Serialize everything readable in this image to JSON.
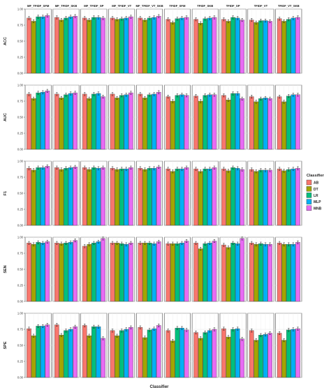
{
  "chart_data": {
    "type": "bar",
    "facets": [
      "MF_TFIDF_SFM",
      "MF_TFIDF_SKB",
      "MF_TFIDF_SP",
      "MF_TFIDF_VT",
      "MF_TFIDF_VT_SKB",
      "TFIDF_SFM",
      "TFIDF_SKB",
      "TFIDF_SP",
      "TFIDF_VT",
      "TFIDF_VT_SKB"
    ],
    "metrics": [
      "ACC",
      "AUC",
      "F1",
      "SEN",
      "SPE"
    ],
    "classifiers": [
      "AB",
      "DT",
      "LR",
      "MLP",
      "MNB"
    ],
    "colors": [
      "#F8766D",
      "#A3A500",
      "#00BF7D",
      "#00B0F6",
      "#E76BF3"
    ],
    "xlabel": "Classifier",
    "legend_title": "Classifier",
    "legend_position": "right",
    "ylim": [
      0,
      1
    ],
    "yticks": [
      "0.00",
      "0.25",
      "0.50",
      "0.75",
      "1.00"
    ],
    "grid": true,
    "panels": [
      {
        "metric": "ACC",
        "values": [
          [
            0.86,
            0.81,
            0.88,
            0.88,
            0.9
          ],
          [
            0.87,
            0.83,
            0.86,
            0.88,
            0.89
          ],
          [
            0.86,
            0.83,
            0.87,
            0.87,
            0.86
          ],
          [
            0.86,
            0.84,
            0.85,
            0.86,
            0.88
          ],
          [
            0.86,
            0.83,
            0.86,
            0.87,
            0.89
          ],
          [
            0.84,
            0.79,
            0.85,
            0.86,
            0.87
          ],
          [
            0.84,
            0.78,
            0.85,
            0.86,
            0.87
          ],
          [
            0.84,
            0.81,
            0.87,
            0.86,
            0.83
          ],
          [
            0.83,
            0.79,
            0.82,
            0.82,
            0.81
          ],
          [
            0.85,
            0.81,
            0.84,
            0.86,
            0.87
          ]
        ]
      },
      {
        "metric": "AUC",
        "values": [
          [
            0.86,
            0.79,
            0.88,
            0.89,
            0.91
          ],
          [
            0.86,
            0.8,
            0.85,
            0.87,
            0.88
          ],
          [
            0.86,
            0.79,
            0.86,
            0.87,
            0.82
          ],
          [
            0.86,
            0.8,
            0.84,
            0.85,
            0.88
          ],
          [
            0.86,
            0.8,
            0.85,
            0.86,
            0.89
          ],
          [
            0.82,
            0.75,
            0.84,
            0.85,
            0.84
          ],
          [
            0.83,
            0.75,
            0.84,
            0.85,
            0.85
          ],
          [
            0.84,
            0.77,
            0.87,
            0.87,
            0.79
          ],
          [
            0.82,
            0.74,
            0.79,
            0.8,
            0.79
          ],
          [
            0.82,
            0.74,
            0.83,
            0.85,
            0.85
          ]
        ]
      },
      {
        "metric": "F1",
        "values": [
          [
            0.89,
            0.86,
            0.9,
            0.9,
            0.92
          ],
          [
            0.9,
            0.87,
            0.89,
            0.9,
            0.91
          ],
          [
            0.9,
            0.87,
            0.9,
            0.89,
            0.9
          ],
          [
            0.89,
            0.87,
            0.88,
            0.88,
            0.9
          ],
          [
            0.89,
            0.87,
            0.89,
            0.89,
            0.91
          ],
          [
            0.88,
            0.84,
            0.88,
            0.88,
            0.9
          ],
          [
            0.88,
            0.84,
            0.88,
            0.88,
            0.9
          ],
          [
            0.88,
            0.85,
            0.9,
            0.89,
            0.87
          ],
          [
            0.87,
            0.84,
            0.86,
            0.86,
            0.86
          ],
          [
            0.88,
            0.85,
            0.87,
            0.88,
            0.89
          ]
        ]
      },
      {
        "metric": "SEN",
        "values": [
          [
            0.91,
            0.89,
            0.92,
            0.91,
            0.93
          ],
          [
            0.91,
            0.9,
            0.91,
            0.92,
            0.95
          ],
          [
            0.86,
            0.89,
            0.91,
            0.93,
            0.98
          ],
          [
            0.91,
            0.91,
            0.9,
            0.89,
            0.91
          ],
          [
            0.91,
            0.91,
            0.91,
            0.9,
            0.93
          ],
          [
            0.9,
            0.9,
            0.9,
            0.91,
            0.94
          ],
          [
            0.91,
            0.82,
            0.9,
            0.91,
            0.94
          ],
          [
            0.88,
            0.84,
            0.91,
            0.9,
            0.98
          ],
          [
            0.91,
            0.89,
            0.9,
            0.89,
            0.89
          ],
          [
            0.91,
            0.89,
            0.89,
            0.89,
            0.92
          ]
        ]
      },
      {
        "metric": "SPE",
        "values": [
          [
            0.76,
            0.65,
            0.8,
            0.8,
            0.82
          ],
          [
            0.82,
            0.66,
            0.73,
            0.75,
            0.79
          ],
          [
            0.81,
            0.65,
            0.79,
            0.79,
            0.61
          ],
          [
            0.73,
            0.65,
            0.73,
            0.75,
            0.78
          ],
          [
            0.78,
            0.62,
            0.74,
            0.76,
            0.81
          ],
          [
            0.73,
            0.57,
            0.77,
            0.77,
            0.74
          ],
          [
            0.7,
            0.61,
            0.7,
            0.73,
            0.75
          ],
          [
            0.76,
            0.63,
            0.75,
            0.76,
            0.6
          ],
          [
            0.73,
            0.58,
            0.66,
            0.67,
            0.69
          ],
          [
            0.69,
            0.58,
            0.74,
            0.75,
            0.76
          ]
        ]
      }
    ]
  }
}
